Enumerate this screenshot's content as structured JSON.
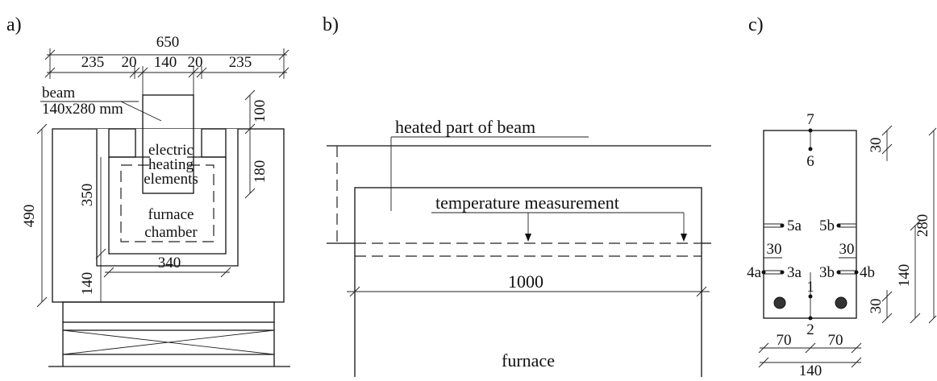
{
  "panel_a": {
    "label": "a)",
    "dims": [
      650,
      235,
      20,
      140,
      20,
      235,
      100,
      180,
      490,
      350,
      340,
      140
    ],
    "beam": [
      "beam",
      "140x280 mm"
    ],
    "heating": [
      "electric",
      "heating",
      "elements"
    ],
    "chamber": [
      "furnace",
      "chamber"
    ]
  },
  "panel_b": {
    "label": "b)",
    "heated": "heated part of beam",
    "measurement": "temperature measurement",
    "length": 1000,
    "furnace": "furnace"
  },
  "panel_c": {
    "label": "c)",
    "points": [
      "7",
      "6",
      "5a",
      "5b",
      "4a",
      "3a",
      "3b",
      "4b",
      "1",
      "2"
    ],
    "dims": [
      30,
      30,
      30,
      30,
      280,
      140,
      70,
      70,
      140
    ]
  }
}
